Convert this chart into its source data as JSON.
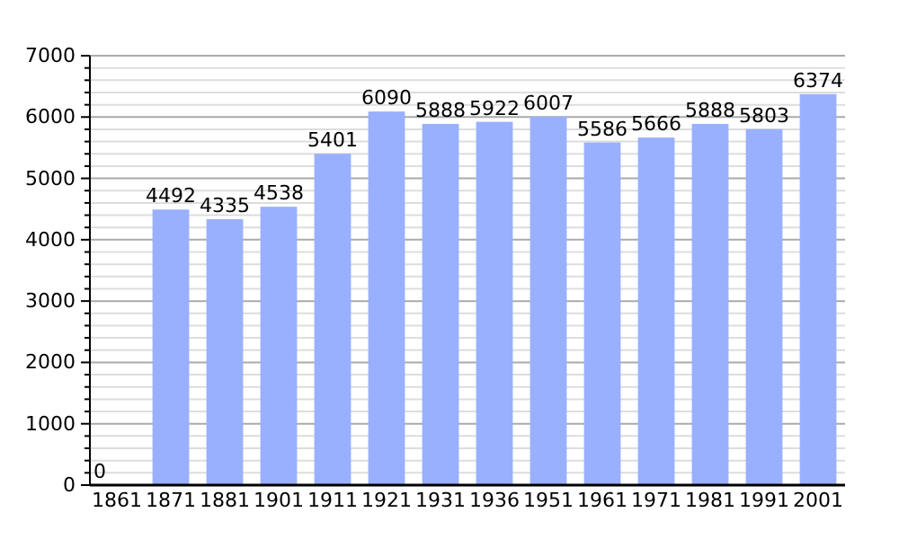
{
  "chart_data": {
    "type": "bar",
    "categories": [
      "1861",
      "1871",
      "1881",
      "1901",
      "1911",
      "1921",
      "1931",
      "1936",
      "1951",
      "1961",
      "1971",
      "1981",
      "1991",
      "2001"
    ],
    "values": [
      0,
      4492,
      4335,
      4538,
      5401,
      6090,
      5888,
      5922,
      6007,
      5586,
      5666,
      5888,
      5803,
      6374
    ],
    "color": "#99b0ff",
    "ylim": [
      0,
      7000
    ],
    "yticks": [
      0,
      {
        "value": 200,
        "label": null
      },
      {
        "value": 400,
        "label": null
      },
      {
        "value": 600,
        "label": null
      },
      {
        "value": 800,
        "label": null
      },
      1000,
      {
        "value": 1200,
        "label": null
      },
      {
        "value": 1400,
        "label": null
      },
      {
        "value": 1600,
        "label": null
      },
      {
        "value": 1800,
        "label": null
      },
      2000,
      {
        "value": 2200,
        "label": null
      },
      {
        "value": 2400,
        "label": null
      },
      {
        "value": 2600,
        "label": null
      },
      {
        "value": 2800,
        "label": null
      },
      3000,
      {
        "value": 3200,
        "label": null
      },
      {
        "value": 3400,
        "label": null
      },
      {
        "value": 3600,
        "label": null
      },
      {
        "value": 3800,
        "label": null
      },
      4000,
      {
        "value": 4200,
        "label": null
      },
      {
        "value": 4400,
        "label": null
      },
      {
        "value": 4600,
        "label": null
      },
      {
        "value": 4800,
        "label": null
      },
      5000,
      {
        "value": 5200,
        "label": null
      },
      {
        "value": 5400,
        "label": null
      },
      {
        "value": 5600,
        "label": null
      },
      {
        "value": 5800,
        "label": null
      },
      6000,
      {
        "value": 6200,
        "label": null
      },
      {
        "value": 6400,
        "label": null
      },
      {
        "value": 6600,
        "label": null
      },
      {
        "value": 6800,
        "label": null
      },
      7000
    ],
    "grid": "y",
    "data_labels": true
  }
}
